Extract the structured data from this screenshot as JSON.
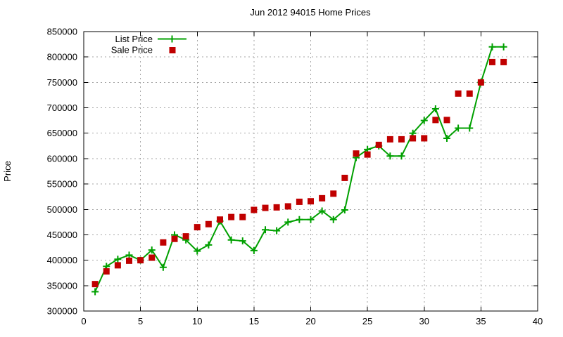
{
  "chart_data": {
    "type": "line",
    "title": "Jun 2012 94015 Home Prices",
    "xlabel": "",
    "ylabel": "Price",
    "xlim": [
      0,
      40
    ],
    "ylim": [
      300000,
      850000
    ],
    "x_ticks": [
      0,
      5,
      10,
      15,
      20,
      25,
      30,
      35,
      40
    ],
    "y_ticks": [
      300000,
      350000,
      400000,
      450000,
      500000,
      550000,
      600000,
      650000,
      700000,
      750000,
      800000,
      850000
    ],
    "grid": true,
    "legend_position": "top-left-inside",
    "x": [
      1,
      2,
      3,
      4,
      5,
      6,
      7,
      8,
      9,
      10,
      11,
      12,
      13,
      14,
      15,
      16,
      17,
      18,
      19,
      20,
      21,
      22,
      23,
      24,
      25,
      26,
      27,
      28,
      29,
      30,
      31,
      32,
      33,
      34,
      35,
      36,
      37
    ],
    "series": [
      {
        "name": "List Price",
        "style": "line-with-plus-markers",
        "marker": "plus",
        "color": "#00a000",
        "values": [
          338000,
          388000,
          402000,
          410000,
          400000,
          420000,
          386000,
          450000,
          440000,
          418000,
          430000,
          477000,
          440000,
          438000,
          419000,
          460000,
          458000,
          475000,
          480000,
          480000,
          497000,
          480000,
          499000,
          602000,
          618000,
          625000,
          605000,
          605000,
          650000,
          675000,
          698000,
          640000,
          660000,
          660000,
          750000,
          820000,
          820000
        ]
      },
      {
        "name": "Sale Price",
        "style": "scatter-squares",
        "marker": "square",
        "color": "#c00000",
        "values": [
          353000,
          378000,
          390000,
          399000,
          400000,
          405000,
          435000,
          442000,
          447000,
          465000,
          471000,
          480000,
          485000,
          485000,
          499000,
          503000,
          504000,
          506000,
          515000,
          516000,
          522000,
          531000,
          562000,
          610000,
          608000,
          627000,
          638000,
          638000,
          640000,
          640000,
          676000,
          676000,
          728000,
          728000,
          750000,
          790000,
          790000
        ]
      }
    ],
    "grid_color": "#a6a6a6",
    "border_color": "#000000",
    "background_color": "#ffffff"
  }
}
